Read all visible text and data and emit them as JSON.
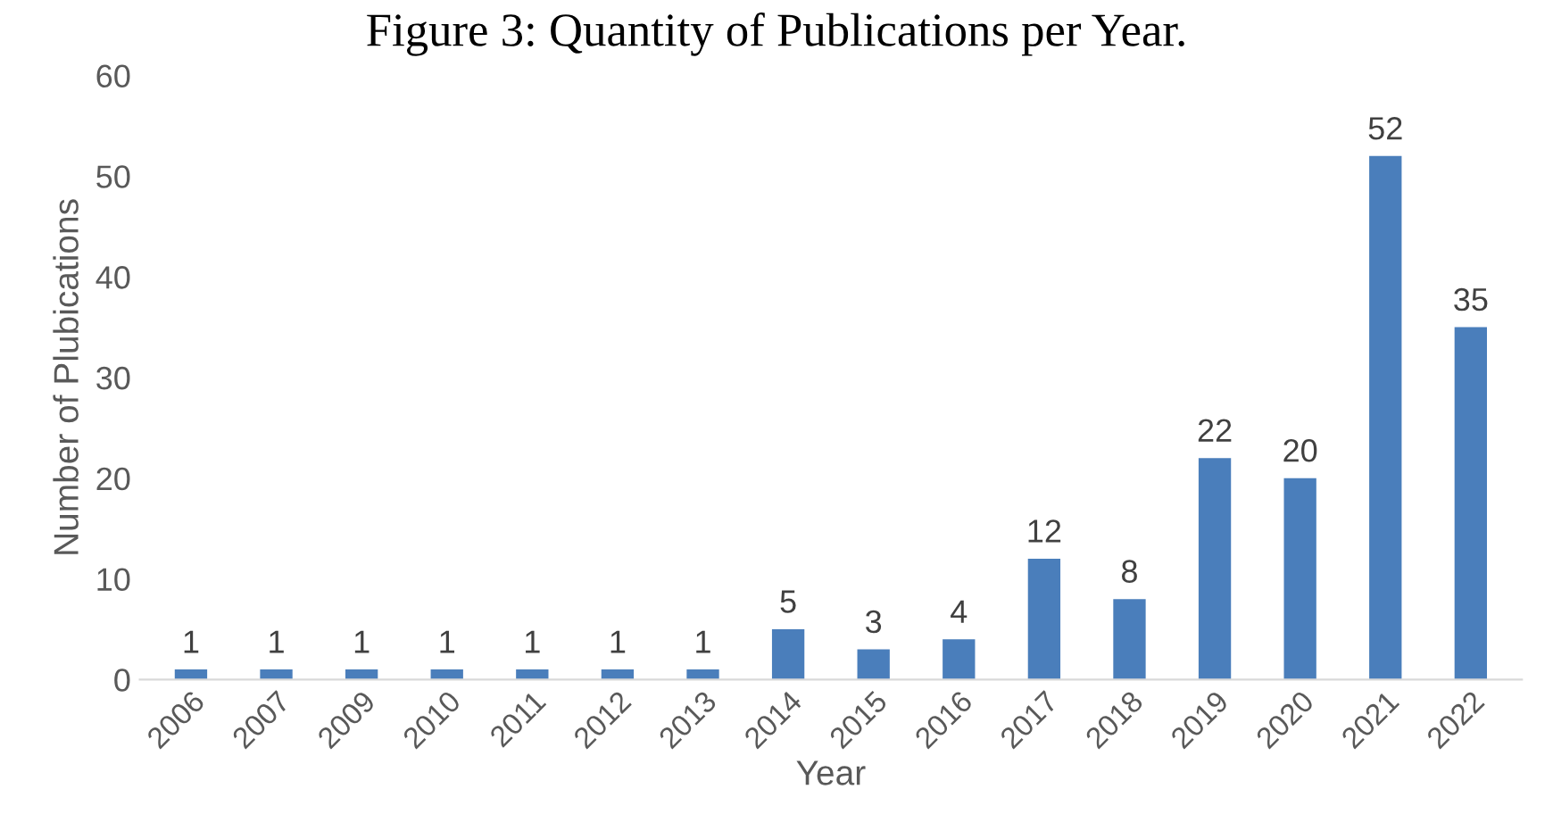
{
  "chart_data": {
    "type": "bar",
    "title": "Figure 3: Quantity of Publications per Year.",
    "xlabel": "Year",
    "ylabel": "Number of Plubications",
    "categories": [
      "2006",
      "2007",
      "2009",
      "2010",
      "2011",
      "2012",
      "2013",
      "2014",
      "2015",
      "2016",
      "2017",
      "2018",
      "2019",
      "2020",
      "2021",
      "2022"
    ],
    "values": [
      1,
      1,
      1,
      1,
      1,
      1,
      1,
      5,
      3,
      4,
      12,
      8,
      22,
      20,
      52,
      35
    ],
    "color": "#4a7ebb",
    "ylim": [
      0,
      60
    ],
    "yticks": [
      0,
      10,
      20,
      30,
      40,
      50,
      60
    ],
    "data_labels": true,
    "grid": false,
    "legend": false
  }
}
